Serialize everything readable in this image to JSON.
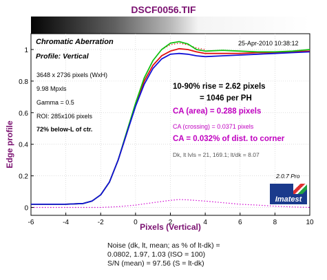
{
  "title": "DSCF0056.TIF",
  "panel": {
    "heading": "Chromatic Aberration",
    "profile": "Profile: Vertical",
    "date": "25-Apr-2010 10:38:12",
    "image_size": "3648 x 2736 pixels (WxH)",
    "mpxls": "9.98 Mpxls",
    "gamma": "Gamma = 0.5",
    "roi": "ROI: 285x106 pixels",
    "position": "72% below-L of ctr.",
    "rise": "10-90% rise = 2.62 pixels",
    "per_ph": "= 1046 per PH",
    "ca_area": "CA (area) = 0.288 pixels",
    "ca_crossing": "CA (crossing) = 0.0371 pixels",
    "ca_corner": "CA = 0.032% of dist. to corner",
    "levels": "Dk, lt lvls = 21, 169.1;  lt/dk = 8.07",
    "version": "2.0.7  Pro",
    "logo": "Imatest"
  },
  "noise": {
    "line1": "Noise (dk, lt, mean; as % of lt-dk) =",
    "line2": "0.0802,  1.97,  1.03  (ISO =  100)",
    "line3": "S/N (mean) = 97.56  (S = lt-dk)"
  },
  "colors": {
    "title": "#7a1070",
    "red": "#e01010",
    "green": "#10c010",
    "blue": "#1010d8",
    "ca_text": "#c000c0",
    "ca_curve": "#d000d0"
  },
  "chart_data": {
    "type": "line",
    "xlabel": "Pixels (Vertical)",
    "ylabel": "Edge profile",
    "xlim": [
      -6,
      10
    ],
    "ylim": [
      -0.05,
      1.1
    ],
    "xticks": [
      -6,
      -4,
      -2,
      0,
      2,
      4,
      6,
      8,
      10
    ],
    "yticks": [
      0,
      0.2,
      0.4,
      0.6,
      0.8,
      1
    ],
    "grid": true,
    "series": [
      {
        "color": "red",
        "dash": false,
        "points": [
          [
            -6,
            0.02
          ],
          [
            -4,
            0.02
          ],
          [
            -3,
            0.025
          ],
          [
            -2.5,
            0.04
          ],
          [
            -2,
            0.08
          ],
          [
            -1.5,
            0.16
          ],
          [
            -1,
            0.3
          ],
          [
            -0.5,
            0.47
          ],
          [
            0,
            0.65
          ],
          [
            0.5,
            0.8
          ],
          [
            1,
            0.9
          ],
          [
            1.5,
            0.96
          ],
          [
            2,
            0.99
          ],
          [
            2.5,
            1.005
          ],
          [
            3,
            1.0
          ],
          [
            3.5,
            0.985
          ],
          [
            4,
            0.975
          ],
          [
            5,
            0.975
          ],
          [
            6,
            0.975
          ],
          [
            7,
            0.98
          ],
          [
            8,
            0.98
          ],
          [
            9,
            0.985
          ],
          [
            10,
            0.99
          ]
        ]
      },
      {
        "color": "green",
        "dash": false,
        "points": [
          [
            -6,
            0.02
          ],
          [
            -4,
            0.02
          ],
          [
            -3,
            0.025
          ],
          [
            -2.5,
            0.04
          ],
          [
            -2,
            0.08
          ],
          [
            -1.5,
            0.16
          ],
          [
            -1,
            0.3
          ],
          [
            -0.5,
            0.48
          ],
          [
            0,
            0.66
          ],
          [
            0.5,
            0.82
          ],
          [
            1,
            0.93
          ],
          [
            1.5,
            1.0
          ],
          [
            2,
            1.04
          ],
          [
            2.5,
            1.05
          ],
          [
            3,
            1.035
          ],
          [
            3.5,
            1.0
          ],
          [
            4,
            0.99
          ],
          [
            5,
            0.995
          ],
          [
            6,
            0.99
          ],
          [
            7,
            0.985
          ],
          [
            8,
            0.985
          ],
          [
            9,
            0.99
          ],
          [
            10,
            1.0
          ]
        ]
      },
      {
        "color": "blue",
        "dash": false,
        "points": [
          [
            -6,
            0.02
          ],
          [
            -4,
            0.02
          ],
          [
            -3,
            0.025
          ],
          [
            -2.5,
            0.04
          ],
          [
            -2,
            0.08
          ],
          [
            -1.5,
            0.16
          ],
          [
            -1,
            0.3
          ],
          [
            -0.5,
            0.47
          ],
          [
            0,
            0.64
          ],
          [
            0.5,
            0.78
          ],
          [
            1,
            0.88
          ],
          [
            1.5,
            0.94
          ],
          [
            2,
            0.97
          ],
          [
            2.5,
            0.975
          ],
          [
            3,
            0.97
          ],
          [
            3.5,
            0.96
          ],
          [
            4,
            0.955
          ],
          [
            5,
            0.96
          ],
          [
            6,
            0.965
          ],
          [
            7,
            0.97
          ],
          [
            8,
            0.975
          ],
          [
            9,
            0.98
          ],
          [
            10,
            0.985
          ]
        ]
      },
      {
        "color": "ca",
        "dash": true,
        "points": [
          [
            -6,
            0.0
          ],
          [
            -3,
            0.0
          ],
          [
            -2,
            0.0
          ],
          [
            -1,
            0.005
          ],
          [
            0,
            0.015
          ],
          [
            1,
            0.03
          ],
          [
            2,
            0.045
          ],
          [
            2.5,
            0.05
          ],
          [
            3,
            0.048
          ],
          [
            4,
            0.04
          ],
          [
            5,
            0.03
          ],
          [
            6,
            0.02
          ],
          [
            7,
            0.015
          ],
          [
            8,
            0.008
          ],
          [
            9,
            0.003
          ],
          [
            10,
            0.0
          ]
        ]
      },
      {
        "color": "red",
        "dash": true,
        "points": [
          [
            1.5,
            1.0
          ],
          [
            2,
            1.03
          ],
          [
            2.5,
            1.04
          ],
          [
            3,
            1.03
          ],
          [
            3.5,
            1.01
          ],
          [
            4,
            1.0
          ]
        ]
      }
    ]
  }
}
